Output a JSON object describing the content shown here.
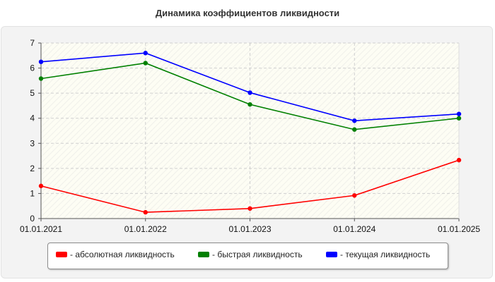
{
  "title": "Динамика коэффициентов ликвидности",
  "chart_data": {
    "type": "line",
    "title": "Динамика коэффициентов ликвидности",
    "xlabel": "",
    "ylabel": "",
    "categories": [
      "01.01.2021",
      "01.01.2022",
      "01.01.2023",
      "01.01.2024",
      "01.01.2025"
    ],
    "ylim": [
      0,
      7
    ],
    "yticks": [
      "0",
      "1",
      "2",
      "3",
      "4",
      "5",
      "6",
      "7"
    ],
    "grid": true,
    "legend_position": "bottom",
    "series": [
      {
        "name": "- абсолютная ликвидность",
        "color": "#ff0000",
        "values": [
          1.3,
          0.25,
          0.4,
          0.92,
          2.33
        ]
      },
      {
        "name": "- быстрая ликвидность",
        "color": "#008000",
        "values": [
          5.58,
          6.2,
          4.55,
          3.55,
          4.0
        ]
      },
      {
        "name": "- текущая ликвидность",
        "color": "#0000ff",
        "values": [
          6.25,
          6.6,
          5.02,
          3.9,
          4.17
        ]
      }
    ]
  }
}
